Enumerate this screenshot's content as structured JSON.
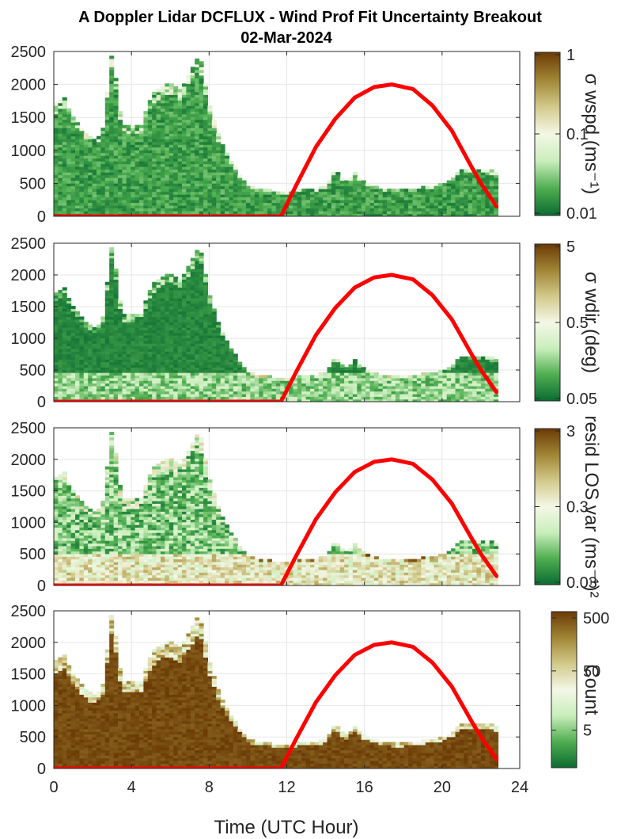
{
  "chart_data": {
    "type": "heatmap",
    "title": "A Doppler Lidar DCFLUX - Wind Prof Fit Uncertainty Breakout",
    "subtitle": "02-Mar-2024",
    "xlabel": "Time (UTC Hour)",
    "xlim": [
      0,
      24
    ],
    "xticks": [
      "0",
      "4",
      "8",
      "12",
      "16",
      "20",
      "24"
    ],
    "ylim": [
      0,
      2500
    ],
    "yticks": [
      "0",
      "500",
      "1000",
      "1500",
      "2000",
      "2500"
    ],
    "grid": true,
    "colors": {
      "green_dark": "#0b6b32",
      "white_mid": "#f4f7e6",
      "brown_dark": "#6b3a06",
      "sun_line": "#ff0000"
    },
    "profile_top": {
      "hours": [
        0,
        0.5,
        1,
        1.5,
        2,
        2.5,
        3,
        3.5,
        4,
        4.5,
        5,
        5.5,
        6,
        6.5,
        7,
        7.5,
        8,
        8.5,
        9,
        9.5,
        10,
        10.5,
        11,
        11.5,
        12,
        12.5,
        13,
        13.5,
        14,
        14.5,
        15,
        15.5,
        16,
        16.5,
        17,
        17.5,
        18,
        18.5,
        19,
        19.5,
        20,
        20.5,
        21,
        21.5,
        22,
        22.5,
        22.8
      ],
      "height_m": [
        1650,
        1800,
        1500,
        1300,
        1150,
        1250,
        2500,
        1350,
        1350,
        1350,
        1800,
        1950,
        2000,
        1900,
        2150,
        2450,
        1700,
        1200,
        900,
        650,
        450,
        400,
        400,
        350,
        350,
        380,
        420,
        400,
        450,
        700,
        500,
        650,
        500,
        450,
        400,
        380,
        380,
        400,
        420,
        450,
        480,
        550,
        700,
        700,
        700,
        680,
        650
      ]
    },
    "sun_elevation": {
      "hours": [
        0,
        11.7,
        12.5,
        13.5,
        14.5,
        15.5,
        16.5,
        17.4,
        18.5,
        19.5,
        20.5,
        21.5,
        22.0,
        22.8
      ],
      "values_m": [
        0,
        0,
        480,
        1050,
        1480,
        1800,
        1960,
        2000,
        1930,
        1680,
        1300,
        760,
        500,
        150
      ]
    },
    "panels": [
      {
        "colorbar_label": "σ wspd (ms⁻¹)",
        "colorbar_ticks": [
          "1",
          "0.1",
          "0.01"
        ],
        "colorbar_scale": "log",
        "colormap": [
          "#0b6b32",
          "#4fae50",
          "#c9eebc",
          "#f4f7e6",
          "#d2c98a",
          "#a08535",
          "#6b3a06"
        ]
      },
      {
        "colorbar_label": "σ wdir (deg)",
        "colorbar_ticks": [
          "5",
          "0.5",
          "0.05"
        ],
        "colorbar_scale": "log",
        "colormap": [
          "#0b6b32",
          "#4fae50",
          "#c9eebc",
          "#f4f7e6",
          "#d2c98a",
          "#a08535",
          "#6b3a06"
        ]
      },
      {
        "colorbar_label": "resid LOS var (ms⁻¹)²",
        "colorbar_ticks": [
          "3",
          "0.3",
          "0.03"
        ],
        "colorbar_scale": "log",
        "colormap": [
          "#0b6b32",
          "#4fae50",
          "#c9eebc",
          "#f4f7e6",
          "#d2c98a",
          "#a08535",
          "#6b3a06"
        ]
      },
      {
        "colorbar_label": "Count",
        "colorbar_ticks": [
          "500",
          "50",
          "5"
        ],
        "colorbar_scale": "log",
        "colormap": [
          "#0b6b32",
          "#4fae50",
          "#c9eebc",
          "#f4f7e6",
          "#d2c98a",
          "#a08535",
          "#6b3a06"
        ]
      }
    ]
  }
}
